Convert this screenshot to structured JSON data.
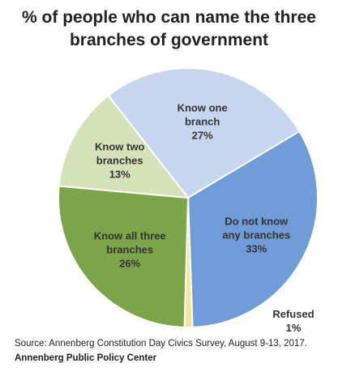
{
  "chart_data": {
    "type": "pie",
    "title": "% of people who can name the three branches of government",
    "categories": [
      "Know one branch",
      "Do not know any branches",
      "Refused",
      "Know all three branches",
      "Know two branches"
    ],
    "values": [
      27,
      33,
      1,
      26,
      13
    ],
    "value_labels": [
      "27%",
      "33%",
      "1%",
      "26%",
      "13%"
    ],
    "colors": [
      "#c6d6ef",
      "#709cd7",
      "#f4e59c",
      "#7ba548",
      "#d5e1b9"
    ],
    "source": "Source: Annenberg Constitution Day Civics Survey, August 9-13, 2017.",
    "credit": "Annenberg Public Policy Center"
  }
}
